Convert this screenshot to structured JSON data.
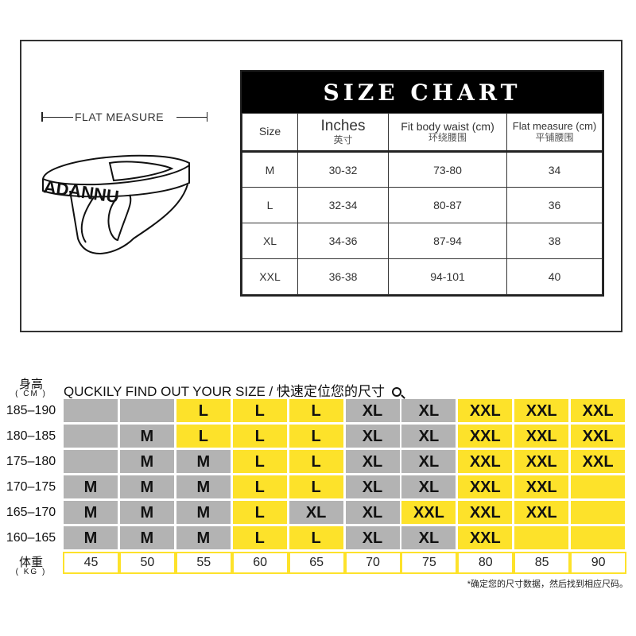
{
  "diagram": {
    "flat_measure": "FLAT  MEASURE",
    "brand": "ADANNU"
  },
  "size_chart": {
    "title": "SIZE CHART",
    "headers": [
      {
        "en": "Size",
        "cn": ""
      },
      {
        "en": "Inches",
        "cn": "英寸"
      },
      {
        "en": "Fit body waist (cm)",
        "cn": "环绕腰围"
      },
      {
        "en": "Flat measure (cm)",
        "cn": "平铺腰围"
      }
    ],
    "rows": [
      [
        "M",
        "30-32",
        "73-80",
        "34"
      ],
      [
        "L",
        "32-34",
        "80-87",
        "36"
      ],
      [
        "XL",
        "34-36",
        "87-94",
        "38"
      ],
      [
        "XXL",
        "36-38",
        "94-101",
        "40"
      ]
    ]
  },
  "finder": {
    "height_label": "身高",
    "height_unit": "( CM )",
    "weight_label": "体重",
    "weight_unit": "( KG )",
    "title": "QUCKILY FIND OUT YOUR SIZE / 快速定位您的尺寸",
    "search_icon": "magnifier",
    "heights": [
      "185–190",
      "180–185",
      "175–180",
      "170–175",
      "165–170",
      "160–165"
    ],
    "weights": [
      "45",
      "50",
      "55",
      "60",
      "65",
      "70",
      "75",
      "80",
      "85",
      "90"
    ],
    "colors": {
      "gray": "#b3b3b3",
      "yellow": "#fde22a"
    },
    "cells": [
      [
        [
          "",
          "g"
        ],
        [
          "",
          "g"
        ],
        [
          "L",
          "y"
        ],
        [
          "L",
          "y"
        ],
        [
          "L",
          "y"
        ],
        [
          "XL",
          "g"
        ],
        [
          "XL",
          "g"
        ],
        [
          "XXL",
          "y"
        ],
        [
          "XXL",
          "y"
        ],
        [
          "XXL",
          "y"
        ]
      ],
      [
        [
          "",
          "g"
        ],
        [
          "M",
          "g"
        ],
        [
          "L",
          "y"
        ],
        [
          "L",
          "y"
        ],
        [
          "L",
          "y"
        ],
        [
          "XL",
          "g"
        ],
        [
          "XL",
          "g"
        ],
        [
          "XXL",
          "y"
        ],
        [
          "XXL",
          "y"
        ],
        [
          "XXL",
          "y"
        ]
      ],
      [
        [
          "",
          "g"
        ],
        [
          "M",
          "g"
        ],
        [
          "M",
          "g"
        ],
        [
          "L",
          "y"
        ],
        [
          "L",
          "y"
        ],
        [
          "XL",
          "g"
        ],
        [
          "XL",
          "g"
        ],
        [
          "XXL",
          "y"
        ],
        [
          "XXL",
          "y"
        ],
        [
          "XXL",
          "y"
        ]
      ],
      [
        [
          "M",
          "g"
        ],
        [
          "M",
          "g"
        ],
        [
          "M",
          "g"
        ],
        [
          "L",
          "y"
        ],
        [
          "L",
          "y"
        ],
        [
          "XL",
          "g"
        ],
        [
          "XL",
          "g"
        ],
        [
          "XXL",
          "y"
        ],
        [
          "XXL",
          "y"
        ],
        [
          "",
          "y"
        ]
      ],
      [
        [
          "M",
          "g"
        ],
        [
          "M",
          "g"
        ],
        [
          "M",
          "g"
        ],
        [
          "L",
          "y"
        ],
        [
          "XL",
          "g"
        ],
        [
          "XL",
          "g"
        ],
        [
          "XXL",
          "y"
        ],
        [
          "XXL",
          "y"
        ],
        [
          "XXL",
          "y"
        ],
        [
          "",
          "y"
        ]
      ],
      [
        [
          "M",
          "g"
        ],
        [
          "M",
          "g"
        ],
        [
          "M",
          "g"
        ],
        [
          "L",
          "y"
        ],
        [
          "L",
          "y"
        ],
        [
          "XL",
          "g"
        ],
        [
          "XL",
          "g"
        ],
        [
          "XXL",
          "y"
        ],
        [
          "",
          "y"
        ],
        [
          "",
          "y"
        ]
      ]
    ],
    "note": "*确定您的尺寸数据，然后找到相应尺码。"
  }
}
